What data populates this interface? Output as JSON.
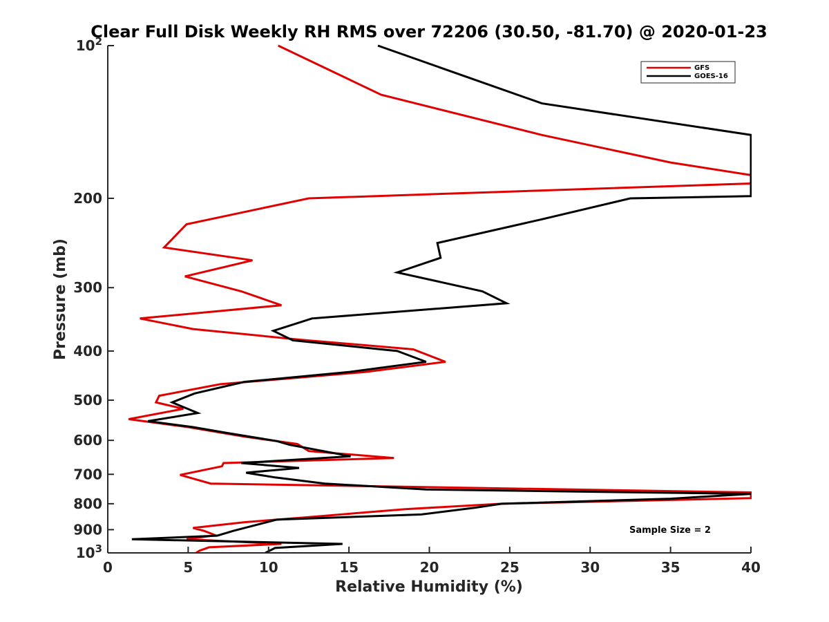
{
  "chart_data": {
    "type": "line",
    "title": "Clear Full Disk Weekly RH RMS over 72206 (30.50, -81.70) @ 2020-01-23",
    "xlabel": "Relative Humidity (%)",
    "ylabel": "Pressure (mb)",
    "xlim": [
      0,
      40
    ],
    "ylim": [
      100,
      1000
    ],
    "y_scale": "log",
    "y_reversed": true,
    "grid": false,
    "legend_position": "top-right",
    "x_ticks": [
      0,
      5,
      10,
      15,
      20,
      25,
      30,
      35,
      40
    ],
    "x_tick_labels": [
      "0",
      "5",
      "10",
      "15",
      "20",
      "25",
      "30",
      "35",
      "40"
    ],
    "y_ticks": [
      100,
      200,
      300,
      400,
      500,
      600,
      700,
      800,
      900,
      1000
    ],
    "y_tick_labels": [
      {
        "base": "10",
        "exp": "2"
      },
      {
        "base": "200",
        "exp": ""
      },
      {
        "base": "300",
        "exp": ""
      },
      {
        "base": "400",
        "exp": ""
      },
      {
        "base": "500",
        "exp": ""
      },
      {
        "base": "600",
        "exp": ""
      },
      {
        "base": "700",
        "exp": ""
      },
      {
        "base": "800",
        "exp": ""
      },
      {
        "base": "900",
        "exp": ""
      },
      {
        "base": "10",
        "exp": "3"
      }
    ],
    "annotation": "Sample Size = 2",
    "series": [
      {
        "name": "GFS",
        "color": "#e00000",
        "points": [
          [
            10.6,
            100
          ],
          [
            17,
            125
          ],
          [
            27,
            150
          ],
          [
            35,
            170
          ],
          [
            40,
            180
          ],
          [
            40,
            187
          ],
          [
            25,
            194
          ],
          [
            12.5,
            200
          ],
          [
            4.9,
            225
          ],
          [
            3.5,
            250
          ],
          [
            9,
            265
          ],
          [
            4.8,
            285
          ],
          [
            8.3,
            305
          ],
          [
            10.8,
            325
          ],
          [
            2.0,
            345
          ],
          [
            5.3,
            362
          ],
          [
            12,
            380
          ],
          [
            19,
            397
          ],
          [
            21,
            420
          ],
          [
            16,
            440
          ],
          [
            7,
            465
          ],
          [
            3.2,
            490
          ],
          [
            3.0,
            505
          ],
          [
            4.7,
            520
          ],
          [
            1.3,
            545
          ],
          [
            5.0,
            565
          ],
          [
            8.5,
            590
          ],
          [
            11.8,
            610
          ],
          [
            12.5,
            630
          ],
          [
            17.8,
            650
          ],
          [
            7.2,
            665
          ],
          [
            7.1,
            675
          ],
          [
            4.5,
            702
          ],
          [
            6.4,
            730
          ],
          [
            40,
            760
          ],
          [
            40,
            780
          ],
          [
            24.5,
            800
          ],
          [
            18.5,
            820
          ],
          [
            12.5,
            850
          ],
          [
            8.5,
            870
          ],
          [
            5.3,
            893
          ],
          [
            6.0,
            905
          ],
          [
            6.7,
            923
          ],
          [
            4.9,
            940
          ],
          [
            10.8,
            960
          ],
          [
            6.3,
            975
          ],
          [
            5.7,
            990
          ],
          [
            5.5,
            1000
          ]
        ]
      },
      {
        "name": "GOES-16",
        "color": "#000000",
        "points": [
          [
            16.8,
            100
          ],
          [
            27,
            130
          ],
          [
            40,
            150
          ],
          [
            40,
            198
          ],
          [
            32.5,
            200
          ],
          [
            27,
            220
          ],
          [
            20.5,
            245
          ],
          [
            20.7,
            262
          ],
          [
            18.0,
            280
          ],
          [
            23.3,
            305
          ],
          [
            24.8,
            322
          ],
          [
            12.7,
            345
          ],
          [
            10.3,
            365
          ],
          [
            11.5,
            381
          ],
          [
            18.0,
            400
          ],
          [
            19.8,
            420
          ],
          [
            15.0,
            440
          ],
          [
            8.5,
            460
          ],
          [
            5.4,
            485
          ],
          [
            4.0,
            505
          ],
          [
            5.6,
            530
          ],
          [
            2.5,
            550
          ],
          [
            5.3,
            565
          ],
          [
            7.4,
            580
          ],
          [
            10.5,
            602
          ],
          [
            11.3,
            612
          ],
          [
            15.1,
            645
          ],
          [
            8.3,
            665
          ],
          [
            11.9,
            680
          ],
          [
            8.6,
            695
          ],
          [
            10.4,
            710
          ],
          [
            13.5,
            730
          ],
          [
            19.8,
            750
          ],
          [
            40,
            765
          ],
          [
            35,
            782
          ],
          [
            24.5,
            800
          ],
          [
            22.8,
            815
          ],
          [
            19.5,
            840
          ],
          [
            10.5,
            860
          ],
          [
            7.8,
            905
          ],
          [
            7.3,
            915
          ],
          [
            6.8,
            925
          ],
          [
            1.5,
            940
          ],
          [
            14.6,
            960
          ],
          [
            10.4,
            978
          ],
          [
            9.8,
            1000
          ]
        ]
      }
    ]
  }
}
